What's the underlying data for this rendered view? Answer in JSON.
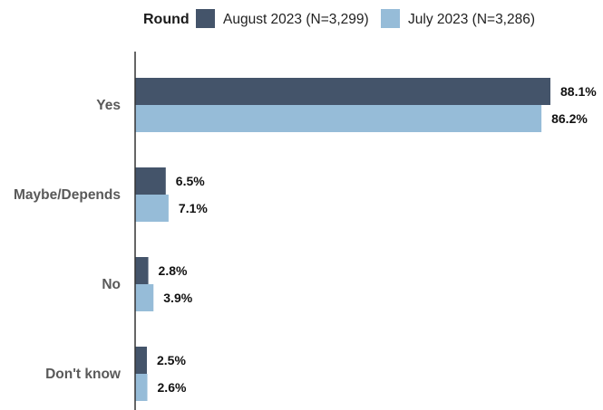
{
  "chart_data": {
    "type": "bar",
    "orientation": "horizontal",
    "legend_title": "Round",
    "legend_position": "top",
    "categories": [
      "Yes",
      "Maybe/Depends",
      "No",
      "Don't know"
    ],
    "series": [
      {
        "name": "August 2023 (N=3,299)",
        "color": "#44546a",
        "values": [
          88.1,
          6.5,
          2.8,
          2.5
        ],
        "labels": [
          "88.1%",
          "6.5%",
          "2.8%",
          "2.5%"
        ]
      },
      {
        "name": "July 2023 (N=3,286)",
        "color": "#96bcd8",
        "values": [
          86.2,
          7.1,
          3.9,
          2.6
        ],
        "labels": [
          "86.2%",
          "7.1%",
          "3.9%",
          "2.6%"
        ]
      }
    ],
    "xlim": [
      0,
      88.1
    ],
    "grid": false,
    "axis_color": "#333333"
  }
}
